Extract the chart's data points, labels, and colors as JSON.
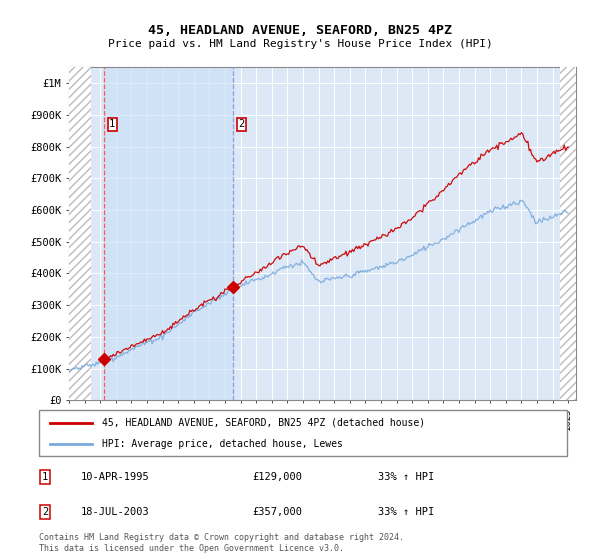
{
  "title": "45, HEADLAND AVENUE, SEAFORD, BN25 4PZ",
  "subtitle": "Price paid vs. HM Land Registry's House Price Index (HPI)",
  "legend_line1": "45, HEADLAND AVENUE, SEAFORD, BN25 4PZ (detached house)",
  "legend_line2": "HPI: Average price, detached house, Lewes",
  "table_entries": [
    {
      "num": "1",
      "date": "10-APR-1995",
      "price": "£129,000",
      "change": "33% ↑ HPI"
    },
    {
      "num": "2",
      "date": "18-JUL-2003",
      "price": "£357,000",
      "change": "33% ↑ HPI"
    }
  ],
  "footnote": "Contains HM Land Registry data © Crown copyright and database right 2024.\nThis data is licensed under the Open Government Licence v3.0.",
  "hpi_color": "#7aaadd",
  "price_color": "#cc0000",
  "ylim": [
    0,
    1050000
  ],
  "yticks": [
    0,
    100000,
    200000,
    300000,
    400000,
    500000,
    600000,
    700000,
    800000,
    900000,
    1000000
  ],
  "ytick_labels": [
    "£0",
    "£100K",
    "£200K",
    "£300K",
    "£400K",
    "£500K",
    "£600K",
    "£700K",
    "£800K",
    "£900K",
    "£1M"
  ],
  "sale1_x": 1995.27,
  "sale1_y": 129000,
  "sale2_x": 2003.54,
  "sale2_y": 357000,
  "xlim_left": 1993.0,
  "xlim_right": 2025.5,
  "hatch_left_end": 1994.4,
  "hatch_right_start": 2024.5
}
